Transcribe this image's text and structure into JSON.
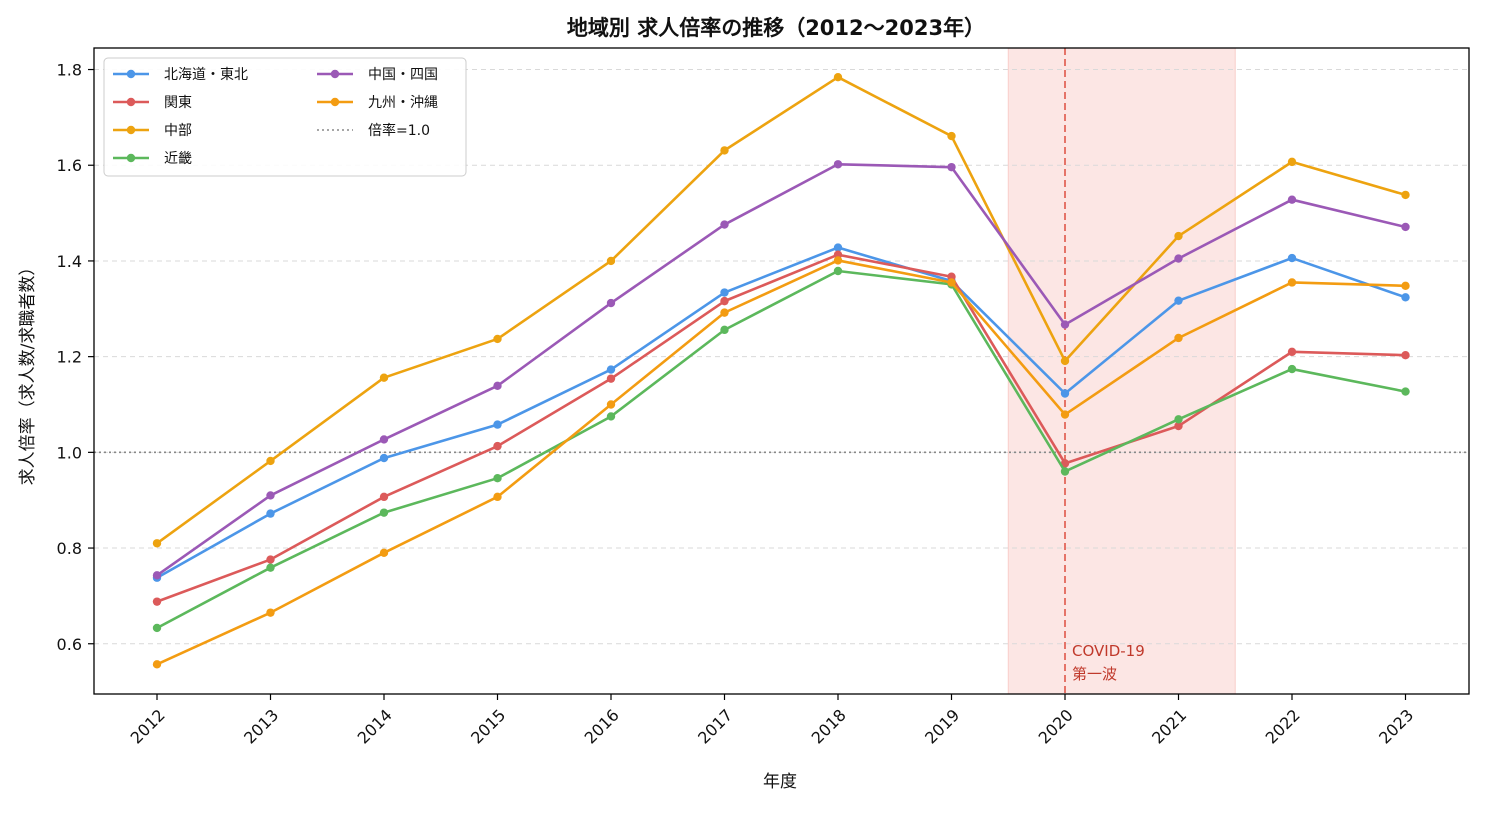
{
  "chart_data": {
    "type": "line",
    "title": "地域別 求人倍率の推移（2012〜2023年）",
    "xlabel": "年度",
    "ylabel": "求人倍率（求人数/求職者数）",
    "x": [
      "2012",
      "2013",
      "2014",
      "2015",
      "2016",
      "2017",
      "2018",
      "2019",
      "2020",
      "2021",
      "2022",
      "2023"
    ],
    "ylim": [
      0.495,
      1.845
    ],
    "yticks": [
      0.6,
      0.8,
      1.0,
      1.2,
      1.4,
      1.6,
      1.8
    ],
    "ytick_labels": [
      "0.6",
      "0.8",
      "1.0",
      "1.2",
      "1.4",
      "1.6",
      "1.8"
    ],
    "grid": "y-dashed",
    "legend_position": "top-left",
    "series": [
      {
        "name": "北海道・東北",
        "color": "#4c96e8",
        "values": [
          0.738,
          0.872,
          0.988,
          1.058,
          1.173,
          1.334,
          1.428,
          1.358,
          1.123,
          1.317,
          1.406,
          1.324
        ]
      },
      {
        "name": "関東",
        "color": "#dc5a5a",
        "values": [
          0.688,
          0.776,
          0.907,
          1.013,
          1.154,
          1.316,
          1.413,
          1.367,
          0.977,
          1.055,
          1.21,
          1.203
        ]
      },
      {
        "name": "中部",
        "color": "#eda310",
        "values": [
          0.81,
          0.982,
          1.156,
          1.237,
          1.4,
          1.631,
          1.784,
          1.661,
          1.191,
          1.452,
          1.607,
          1.538
        ]
      },
      {
        "name": "近畿",
        "color": "#5cb85c",
        "values": [
          0.633,
          0.759,
          0.874,
          0.946,
          1.075,
          1.256,
          1.379,
          1.351,
          0.96,
          1.069,
          1.174,
          1.127
        ]
      },
      {
        "name": "中国・四国",
        "color": "#9b59b6",
        "values": [
          0.743,
          0.91,
          1.027,
          1.139,
          1.312,
          1.476,
          1.602,
          1.596,
          1.267,
          1.405,
          1.528,
          1.471
        ]
      },
      {
        "name": "九州・沖縄",
        "color": "#f39c12",
        "values": [
          0.557,
          0.665,
          0.79,
          0.907,
          1.1,
          1.292,
          1.401,
          1.355,
          1.079,
          1.239,
          1.355,
          1.348
        ]
      }
    ],
    "reference_line": {
      "label": "倍率=1.0",
      "y": 1.0,
      "color": "#888888",
      "style": "dotted"
    },
    "shaded_span": {
      "x_from": 2019.5,
      "x_to": 2021.5,
      "color": "#f5b7b1"
    },
    "event_line": {
      "x": 2020,
      "color": "#e57368",
      "style": "dashed"
    },
    "annotation": {
      "lines": [
        "COVID-19",
        "第一波"
      ],
      "color": "#c0392b"
    }
  }
}
